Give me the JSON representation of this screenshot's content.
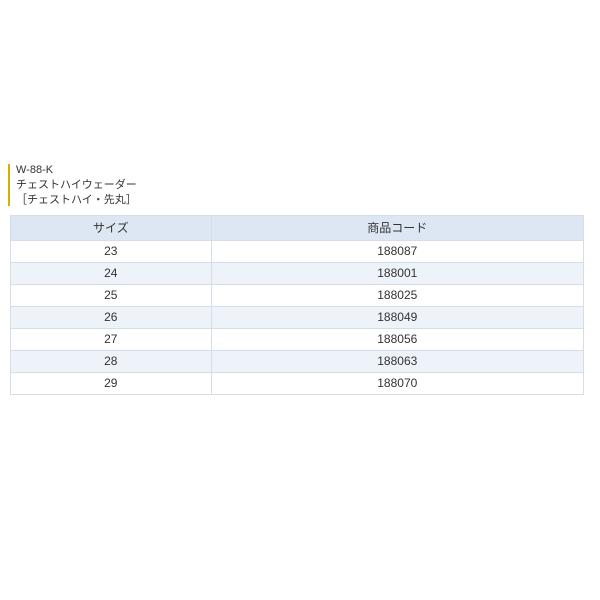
{
  "accent_color": "#d4b000",
  "title": {
    "line1": "W-88-K",
    "line2": "チェストハイウェーダー",
    "line3": "［チェストハイ・先丸］",
    "color": "#333333",
    "fontsize": 11
  },
  "table": {
    "border_color": "#d5dde8",
    "header_bg": "#dce7f3",
    "row_even_bg": "#eef3f9",
    "row_odd_bg": "#ffffff",
    "text_color": "#333333",
    "columns": [
      "サイズ",
      "商品コード"
    ],
    "rows": [
      [
        "23",
        "188087"
      ],
      [
        "24",
        "188001"
      ],
      [
        "25",
        "188025"
      ],
      [
        "26",
        "188049"
      ],
      [
        "27",
        "188056"
      ],
      [
        "28",
        "188063"
      ],
      [
        "29",
        "188070"
      ]
    ]
  }
}
